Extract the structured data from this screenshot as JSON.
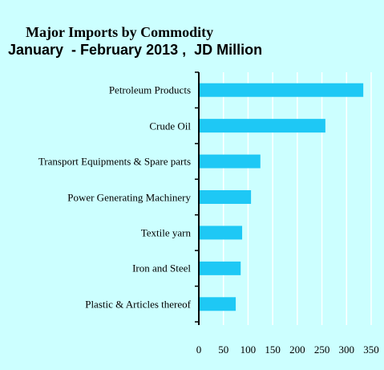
{
  "chart_data": {
    "type": "bar",
    "orientation": "horizontal",
    "title": "Major Imports by Commodity",
    "subtitle": "January  - February 2013 ,  JD Million",
    "categories": [
      "Petroleum Products",
      "Crude Oil",
      "Transport Equipments & Spare parts",
      "Power Generating Machinery",
      "Textile yarn",
      "Iron and Steel",
      "Plastic & Articles thereof"
    ],
    "values": [
      334,
      257,
      125,
      106,
      88,
      85,
      75
    ],
    "color": "#1ec8f5",
    "xlim": [
      0,
      350
    ],
    "xticks": [
      0,
      50,
      100,
      150,
      200,
      250,
      300,
      350
    ],
    "grid": true
  }
}
